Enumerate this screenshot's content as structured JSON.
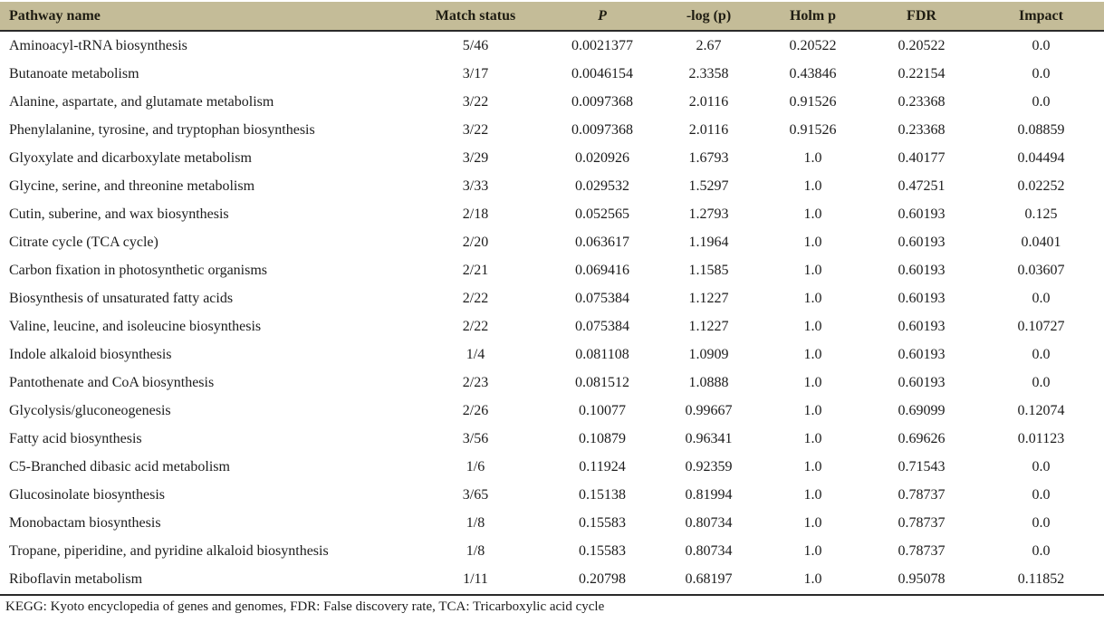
{
  "table": {
    "columns": [
      "Pathway name",
      "Match status",
      "P",
      "-log (p)",
      "Holm p",
      "FDR",
      "Impact"
    ],
    "rows": [
      [
        "Aminoacyl-tRNA biosynthesis",
        "5/46",
        "0.0021377",
        "2.67",
        "0.20522",
        "0.20522",
        "0.0"
      ],
      [
        "Butanoate metabolism",
        "3/17",
        "0.0046154",
        "2.3358",
        "0.43846",
        "0.22154",
        "0.0"
      ],
      [
        "Alanine, aspartate, and glutamate metabolism",
        "3/22",
        "0.0097368",
        "2.0116",
        "0.91526",
        "0.23368",
        "0.0"
      ],
      [
        "Phenylalanine, tyrosine, and tryptophan biosynthesis",
        "3/22",
        "0.0097368",
        "2.0116",
        "0.91526",
        "0.23368",
        "0.08859"
      ],
      [
        "Glyoxylate and dicarboxylate metabolism",
        "3/29",
        "0.020926",
        "1.6793",
        "1.0",
        "0.40177",
        "0.04494"
      ],
      [
        "Glycine, serine, and threonine metabolism",
        "3/33",
        "0.029532",
        "1.5297",
        "1.0",
        "0.47251",
        "0.02252"
      ],
      [
        "Cutin, suberine, and wax biosynthesis",
        "2/18",
        "0.052565",
        "1.2793",
        "1.0",
        "0.60193",
        "0.125"
      ],
      [
        "Citrate cycle (TCA cycle)",
        "2/20",
        "0.063617",
        "1.1964",
        "1.0",
        "0.60193",
        "0.0401"
      ],
      [
        "Carbon fixation in photosynthetic organisms",
        "2/21",
        "0.069416",
        "1.1585",
        "1.0",
        "0.60193",
        "0.03607"
      ],
      [
        "Biosynthesis of unsaturated fatty acids",
        "2/22",
        "0.075384",
        "1.1227",
        "1.0",
        "0.60193",
        "0.0"
      ],
      [
        "Valine, leucine, and isoleucine biosynthesis",
        "2/22",
        "0.075384",
        "1.1227",
        "1.0",
        "0.60193",
        "0.10727"
      ],
      [
        "Indole alkaloid biosynthesis",
        "1/4",
        "0.081108",
        "1.0909",
        "1.0",
        "0.60193",
        "0.0"
      ],
      [
        "Pantothenate and CoA biosynthesis",
        "2/23",
        "0.081512",
        "1.0888",
        "1.0",
        "0.60193",
        "0.0"
      ],
      [
        "Glycolysis/gluconeogenesis",
        "2/26",
        "0.10077",
        "0.99667",
        "1.0",
        "0.69099",
        "0.12074"
      ],
      [
        "Fatty acid biosynthesis",
        "3/56",
        "0.10879",
        "0.96341",
        "1.0",
        "0.69626",
        "0.01123"
      ],
      [
        "C5-Branched dibasic acid metabolism",
        "1/6",
        "0.11924",
        "0.92359",
        "1.0",
        "0.71543",
        "0.0"
      ],
      [
        "Glucosinolate biosynthesis",
        "3/65",
        "0.15138",
        "0.81994",
        "1.0",
        "0.78737",
        "0.0"
      ],
      [
        "Monobactam biosynthesis",
        "1/8",
        "0.15583",
        "0.80734",
        "1.0",
        "0.78737",
        "0.0"
      ],
      [
        "Tropane, piperidine, and pyridine alkaloid biosynthesis",
        "1/8",
        "0.15583",
        "0.80734",
        "1.0",
        "0.78737",
        "0.0"
      ],
      [
        "Riboflavin metabolism",
        "1/11",
        "0.20798",
        "0.68197",
        "1.0",
        "0.95078",
        "0.11852"
      ]
    ],
    "footnote": "KEGG: Kyoto encyclopedia of genes and genomes, FDR: False discovery rate, TCA: Tricarboxylic acid cycle",
    "colors": {
      "header_bg": "#c4bc98",
      "text": "#1c1c1c",
      "rule": "#2a2a2a"
    }
  }
}
